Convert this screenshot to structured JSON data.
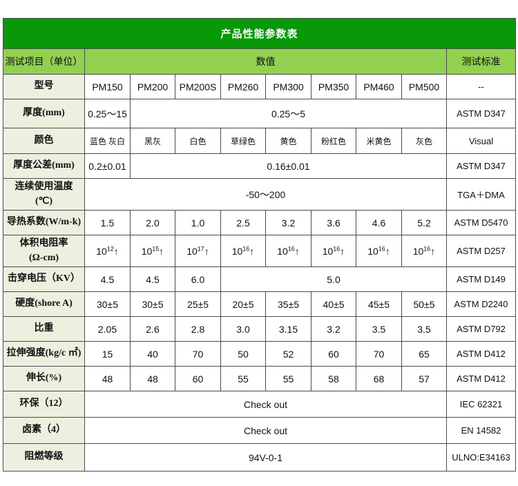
{
  "title": "产品性能参数表",
  "colors": {
    "header_green": "#089908",
    "subheader_green": "#92d050",
    "label_bg": "#ebf1de",
    "border": "#4a4a4a"
  },
  "header": {
    "item": "测试项目（单位）",
    "value": "数值",
    "standard": "测试标准"
  },
  "rows": [
    {
      "label": "型号",
      "cells": [
        {
          "t": "PM150"
        },
        {
          "t": "PM200"
        },
        {
          "t": "PM200S"
        },
        {
          "t": "PM260"
        },
        {
          "t": "PM300"
        },
        {
          "t": "PM350"
        },
        {
          "t": "PM460"
        },
        {
          "t": "PM500"
        }
      ],
      "standard": "--"
    },
    {
      "label": "厚度(mm)",
      "cells": [
        {
          "t": "0.25～15"
        },
        {
          "t": "0.25～5",
          "span": 7
        }
      ],
      "standard": "ASTM D347"
    },
    {
      "label": "颜色",
      "cells": [
        {
          "t": "蓝色 灰白"
        },
        {
          "t": "黑灰"
        },
        {
          "t": "白色"
        },
        {
          "t": "草绿色"
        },
        {
          "t": "黄色"
        },
        {
          "t": "粉红色"
        },
        {
          "t": "米黄色"
        },
        {
          "t": "灰色"
        }
      ],
      "standard": "Visual"
    },
    {
      "label": "厚度公差(mm)",
      "cells": [
        {
          "t": "0.2±0.01"
        },
        {
          "t": "0.16±0.01",
          "span": 7
        }
      ],
      "standard": "ASTM D347"
    },
    {
      "label": "连续使用温度\n(℃)",
      "cells": [
        {
          "t": "-50～200",
          "span": 8
        }
      ],
      "standard": "TGA＋DMA"
    },
    {
      "label": "导热系数(W/m-k)",
      "cells": [
        {
          "t": "1.5"
        },
        {
          "t": "2.0"
        },
        {
          "t": "1.0"
        },
        {
          "t": "2.5"
        },
        {
          "t": "3.2"
        },
        {
          "t": "3.6"
        },
        {
          "t": "4.6"
        },
        {
          "t": "5.2"
        }
      ],
      "standard": "ASTM D5470"
    },
    {
      "label": "体积电阻率\n(Ω-cm)",
      "cells": [
        {
          "t": "10^{12}↑"
        },
        {
          "t": "10^{15}↑"
        },
        {
          "t": "10^{17}↑"
        },
        {
          "t": "10^{16}↑"
        },
        {
          "t": "10^{16}↑"
        },
        {
          "t": "10^{16}↑"
        },
        {
          "t": "10^{16}↑"
        },
        {
          "t": "10^{16}↑"
        }
      ],
      "standard": "ASTM D257"
    },
    {
      "label": "击穿电压（KV）",
      "cells": [
        {
          "t": "4.5"
        },
        {
          "t": "4.5"
        },
        {
          "t": "6.0"
        },
        {
          "t": "5.0",
          "span": 5
        }
      ],
      "standard": "ASTM D149"
    },
    {
      "label": "硬度(shore A)",
      "cells": [
        {
          "t": "30±5"
        },
        {
          "t": "30±5"
        },
        {
          "t": "25±5"
        },
        {
          "t": "20±5"
        },
        {
          "t": "35±5"
        },
        {
          "t": "40±5"
        },
        {
          "t": "45±5"
        },
        {
          "t": "50±5"
        }
      ],
      "standard": "ASTM D2240"
    },
    {
      "label": "比重",
      "cells": [
        {
          "t": "2.05"
        },
        {
          "t": "2.6"
        },
        {
          "t": "2.8"
        },
        {
          "t": "3.0"
        },
        {
          "t": "3.15"
        },
        {
          "t": "3.2"
        },
        {
          "t": "3.5"
        },
        {
          "t": "3.5"
        }
      ],
      "standard": "ASTM D792"
    },
    {
      "label": "拉伸强度(kg/c ㎡)",
      "cells": [
        {
          "t": "15"
        },
        {
          "t": "40"
        },
        {
          "t": "70"
        },
        {
          "t": "50"
        },
        {
          "t": "52"
        },
        {
          "t": "60"
        },
        {
          "t": "70"
        },
        {
          "t": "65"
        }
      ],
      "standard": "ASTM D412"
    },
    {
      "label": "伸长(%)",
      "cells": [
        {
          "t": "48"
        },
        {
          "t": "48"
        },
        {
          "t": "60"
        },
        {
          "t": "55"
        },
        {
          "t": "55"
        },
        {
          "t": "58"
        },
        {
          "t": "68"
        },
        {
          "t": "57"
        }
      ],
      "standard": "ASTM D412"
    },
    {
      "label": "环保（12）",
      "cells": [
        {
          "t": "Check out",
          "span": 8
        }
      ],
      "standard": "IEC 62321"
    },
    {
      "label": "卤素（4）",
      "cells": [
        {
          "t": "Check out",
          "span": 8
        }
      ],
      "standard": "EN 14582"
    },
    {
      "label": "阻燃等级",
      "cells": [
        {
          "t": "94V-0-1",
          "span": 8
        }
      ],
      "standard": "ULNO:E34163"
    }
  ]
}
